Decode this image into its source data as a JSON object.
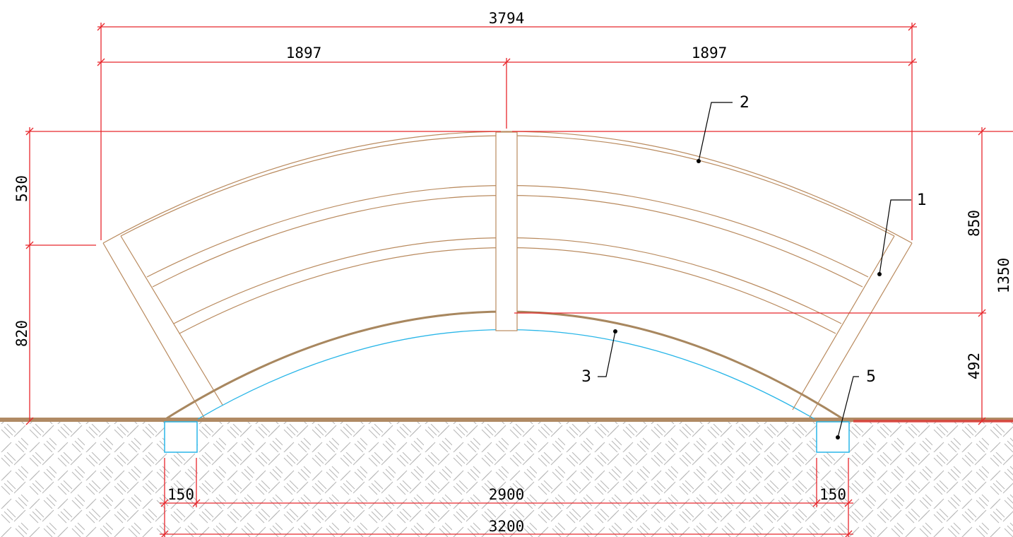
{
  "colors": {
    "dimension": "#e8272c",
    "wood": "#b98a5e",
    "wood_dark": "#a8875f",
    "ground": "#b08a64",
    "hatch": "#b0b0b0",
    "footing": "#29b6e8",
    "inner_arc": "#29b6e8",
    "text": "#000000"
  },
  "dimensions": {
    "total_width": "3794",
    "half_left": "1897",
    "half_right": "1897",
    "left_upper": "530",
    "left_lower": "820",
    "right_upper": "850",
    "right_total": "1350",
    "right_lower": "492",
    "footing_left": "150",
    "span": "2900",
    "footing_right": "150",
    "base_total": "3200"
  },
  "callouts": {
    "c1": "1",
    "c2": "2",
    "c3": "3",
    "c5": "5"
  }
}
